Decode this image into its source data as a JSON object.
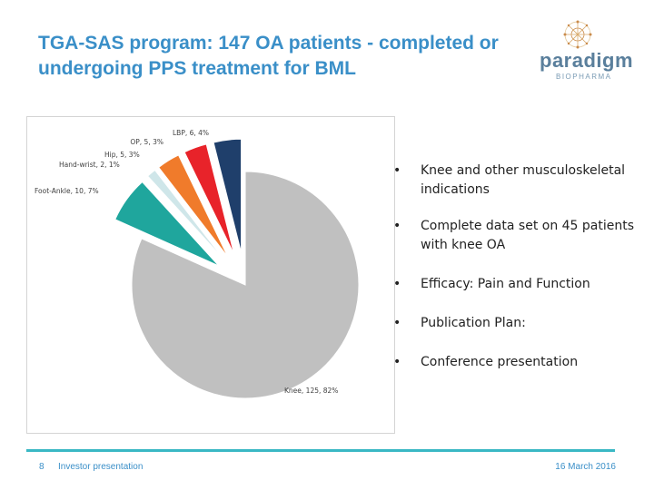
{
  "title": "TGA-SAS program: 147 OA patients - completed or undergoing PPS treatment for BML",
  "logo": {
    "name": "paradigm",
    "sub": "BIOPHARMA",
    "icon": "paradigm-logo-icon"
  },
  "bullets": [
    "Knee and other musculoskeletal indications",
    "Complete data set on 45 patients with knee OA",
    "Efficacy: Pain and Function",
    "Publication Plan:",
    "Conference presentation"
  ],
  "bullet_marker": "•",
  "footer": {
    "page_number": "8",
    "left_text": "Investor presentation",
    "right_text": "16 March 2016"
  },
  "colors": {
    "title": "#3a8fc8",
    "footer_line": "#3ab8c4"
  },
  "chart_data": {
    "type": "pie",
    "exploded": true,
    "slices": [
      {
        "label": "Knee",
        "value": 125,
        "percent": "82%",
        "text": "Knee, 125, 82%",
        "color": "#c0c0c0"
      },
      {
        "label": "Foot-Ankle",
        "value": 10,
        "percent": "7%",
        "text": "Foot-Ankle, 10, 7%",
        "color": "#1fa69d"
      },
      {
        "label": "Hand-wrist",
        "value": 2,
        "percent": "1%",
        "text": "Hand-wrist, 2, 1%",
        "color": "#cfe6e9"
      },
      {
        "label": "Hip",
        "value": 5,
        "percent": "3%",
        "text": "Hip, 5, 3%",
        "color": "#f07b2b"
      },
      {
        "label": "OP",
        "value": 5,
        "percent": "3%",
        "text": "OP, 5, 3%",
        "color": "#e8232a"
      },
      {
        "label": "LBP",
        "value": 6,
        "percent": "4%",
        "text": "LBP, 6, 4%",
        "color": "#1f3f6b"
      }
    ]
  }
}
